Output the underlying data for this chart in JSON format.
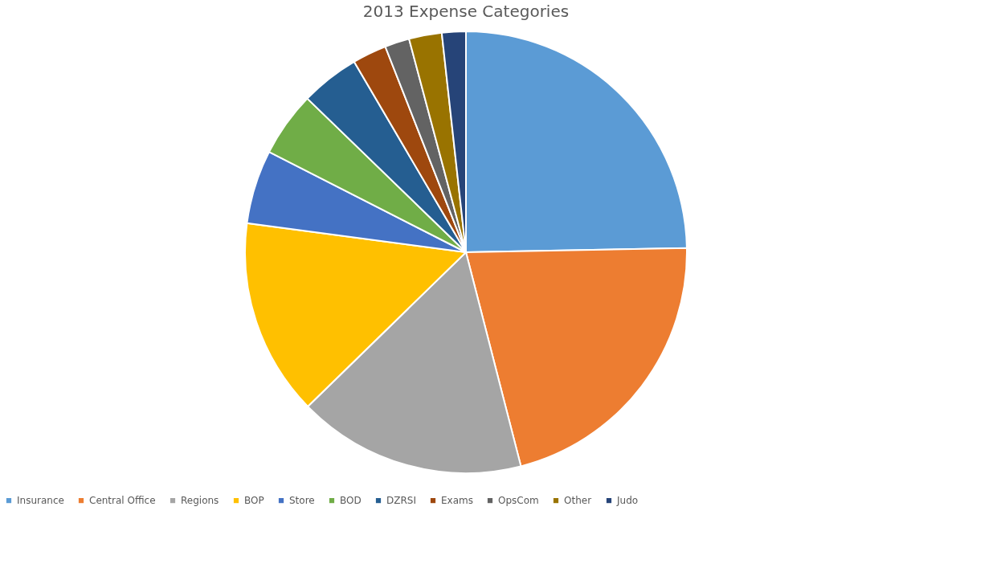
{
  "chart_data": {
    "type": "pie",
    "title": "2013 Expense Categories",
    "categories": [
      "Insurance",
      "Central Office",
      "Regions",
      "BOP",
      "Store",
      "BOD",
      "DZRSI",
      "Exams",
      "OpsCom",
      "Other",
      "Judo"
    ],
    "values": [
      24.7,
      21.3,
      16.7,
      14.4,
      5.4,
      4.75,
      4.3,
      2.5,
      1.8,
      2.4,
      1.75
    ],
    "colors": [
      "#5b9bd5",
      "#ed7d31",
      "#a5a5a5",
      "#ffc000",
      "#4472c4",
      "#70ad47",
      "#255e91",
      "#9e480e",
      "#636363",
      "#997300",
      "#264478"
    ],
    "legend": "bottom"
  }
}
